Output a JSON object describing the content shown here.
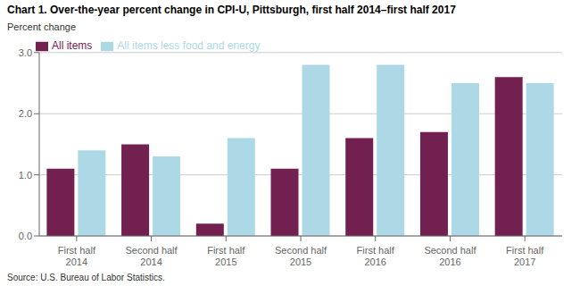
{
  "chart_data": {
    "type": "bar",
    "title": "Chart 1. Over-the-year percent change in CPI-U, Pittsburgh, first half 2014–first half 2017",
    "ylabel": "Percent change",
    "source": "Source: U.S. Bureau of Labor Statistics.",
    "categories": [
      "First half 2014",
      "Second half 2014",
      "First half 2015",
      "Second half 2015",
      "First half 2016",
      "Second half 2016",
      "First half 2017"
    ],
    "series": [
      {
        "name": "All items",
        "color": "#722050",
        "values": [
          1.1,
          1.5,
          0.2,
          1.1,
          1.6,
          1.7,
          2.6
        ]
      },
      {
        "name": "All items less food and energy",
        "color": "#add8e6",
        "values": [
          1.4,
          1.3,
          1.6,
          2.8,
          2.8,
          2.5,
          2.5
        ]
      }
    ],
    "ylim": [
      0.0,
      3.0
    ],
    "yticks": [
      {
        "value": 0,
        "label": "0.0"
      },
      {
        "value": 1,
        "label": "1.0"
      },
      {
        "value": 2,
        "label": "2.0"
      },
      {
        "value": 3,
        "label": "3.0"
      }
    ],
    "grid": true,
    "legend": "upper left"
  }
}
